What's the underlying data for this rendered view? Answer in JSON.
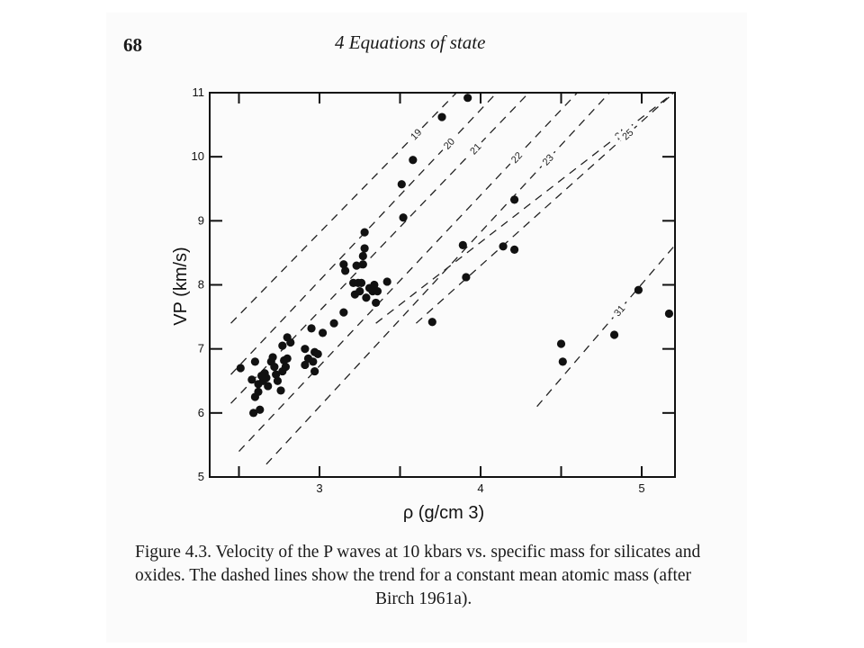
{
  "page": {
    "number": "68",
    "running_head": "4  Equations of state"
  },
  "caption": {
    "lines": [
      "Figure 4.3.  Velocity of the P waves at 10 kbars vs. specific mass for silicates and",
      "oxides. The dashed lines show the trend for a constant mean atomic mass (after",
      "Birch 1961a)."
    ]
  },
  "chart_data": {
    "type": "scatter",
    "title": "",
    "xlabel": "ρ (g/cm 3)",
    "ylabel": "VP (km/s)",
    "xlim": [
      2.45,
      5.2
    ],
    "ylim": [
      5,
      11
    ],
    "x_ticks": [
      3,
      4,
      5
    ],
    "y_ticks": [
      5,
      6,
      7,
      8,
      9,
      10,
      11
    ],
    "grid": false,
    "points": [
      {
        "x": 2.51,
        "y": 6.7
      },
      {
        "x": 2.6,
        "y": 6.8
      },
      {
        "x": 2.58,
        "y": 6.52
      },
      {
        "x": 2.62,
        "y": 6.45
      },
      {
        "x": 2.6,
        "y": 6.25
      },
      {
        "x": 2.62,
        "y": 6.33
      },
      {
        "x": 2.65,
        "y": 6.5
      },
      {
        "x": 2.66,
        "y": 6.62
      },
      {
        "x": 2.67,
        "y": 6.55
      },
      {
        "x": 2.68,
        "y": 6.42
      },
      {
        "x": 2.7,
        "y": 6.8
      },
      {
        "x": 2.71,
        "y": 6.87
      },
      {
        "x": 2.73,
        "y": 6.6
      },
      {
        "x": 2.74,
        "y": 6.5
      },
      {
        "x": 2.72,
        "y": 6.72
      },
      {
        "x": 2.76,
        "y": 6.35
      },
      {
        "x": 2.77,
        "y": 6.65
      },
      {
        "x": 2.78,
        "y": 6.82
      },
      {
        "x": 2.79,
        "y": 6.72
      },
      {
        "x": 2.77,
        "y": 7.05
      },
      {
        "x": 2.8,
        "y": 7.18
      },
      {
        "x": 2.82,
        "y": 7.1
      },
      {
        "x": 2.8,
        "y": 6.85
      },
      {
        "x": 2.59,
        "y": 6.0
      },
      {
        "x": 2.63,
        "y": 6.05
      },
      {
        "x": 2.64,
        "y": 6.58
      },
      {
        "x": 2.91,
        "y": 7.0
      },
      {
        "x": 2.91,
        "y": 6.75
      },
      {
        "x": 2.93,
        "y": 6.85
      },
      {
        "x": 2.95,
        "y": 7.32
      },
      {
        "x": 2.96,
        "y": 6.8
      },
      {
        "x": 2.97,
        "y": 6.95
      },
      {
        "x": 2.97,
        "y": 6.65
      },
      {
        "x": 2.99,
        "y": 6.92
      },
      {
        "x": 3.02,
        "y": 7.25
      },
      {
        "x": 3.09,
        "y": 7.4
      },
      {
        "x": 3.15,
        "y": 7.57
      },
      {
        "x": 3.15,
        "y": 8.32
      },
      {
        "x": 3.16,
        "y": 8.22
      },
      {
        "x": 3.21,
        "y": 8.03
      },
      {
        "x": 3.22,
        "y": 7.85
      },
      {
        "x": 3.23,
        "y": 8.3
      },
      {
        "x": 3.24,
        "y": 8.03
      },
      {
        "x": 3.25,
        "y": 7.9
      },
      {
        "x": 3.26,
        "y": 8.03
      },
      {
        "x": 3.27,
        "y": 8.45
      },
      {
        "x": 3.27,
        "y": 8.32
      },
      {
        "x": 3.28,
        "y": 8.57
      },
      {
        "x": 3.28,
        "y": 8.82
      },
      {
        "x": 3.29,
        "y": 7.8
      },
      {
        "x": 3.31,
        "y": 7.95
      },
      {
        "x": 3.33,
        "y": 7.9
      },
      {
        "x": 3.34,
        "y": 8.0
      },
      {
        "x": 3.35,
        "y": 7.72
      },
      {
        "x": 3.36,
        "y": 7.9
      },
      {
        "x": 3.42,
        "y": 8.05
      },
      {
        "x": 3.51,
        "y": 9.57
      },
      {
        "x": 3.52,
        "y": 9.05
      },
      {
        "x": 3.58,
        "y": 9.95
      },
      {
        "x": 3.7,
        "y": 7.42
      },
      {
        "x": 3.76,
        "y": 10.62
      },
      {
        "x": 3.89,
        "y": 8.62
      },
      {
        "x": 3.91,
        "y": 8.12
      },
      {
        "x": 3.92,
        "y": 10.92
      },
      {
        "x": 4.14,
        "y": 8.6
      },
      {
        "x": 4.21,
        "y": 8.55
      },
      {
        "x": 4.21,
        "y": 9.33
      },
      {
        "x": 4.5,
        "y": 7.08
      },
      {
        "x": 4.51,
        "y": 6.8
      },
      {
        "x": 4.83,
        "y": 7.22
      },
      {
        "x": 4.98,
        "y": 7.92
      },
      {
        "x": 5.17,
        "y": 7.55
      }
    ],
    "trend_lines": [
      {
        "label": "19",
        "x": [
          2.45,
          3.85
        ],
        "y": [
          7.4,
          11.0
        ]
      },
      {
        "label": "20",
        "x": [
          2.45,
          4.1
        ],
        "y": [
          6.6,
          11.0
        ]
      },
      {
        "label": "21",
        "x": [
          2.45,
          4.3
        ],
        "y": [
          6.15,
          11.0
        ]
      },
      {
        "label": "22",
        "x": [
          2.5,
          4.6
        ],
        "y": [
          5.4,
          11.0
        ]
      },
      {
        "label": "23",
        "x": [
          2.67,
          4.8
        ],
        "y": [
          5.2,
          11.0
        ]
      },
      {
        "label": "24",
        "x": [
          3.35,
          5.2
        ],
        "y": [
          7.4,
          11.0
        ]
      },
      {
        "label": "25",
        "x": [
          3.6,
          5.2
        ],
        "y": [
          7.4,
          11.0
        ]
      },
      {
        "label": "31",
        "x": [
          4.35,
          5.2
        ],
        "y": [
          6.1,
          8.6
        ]
      }
    ]
  }
}
